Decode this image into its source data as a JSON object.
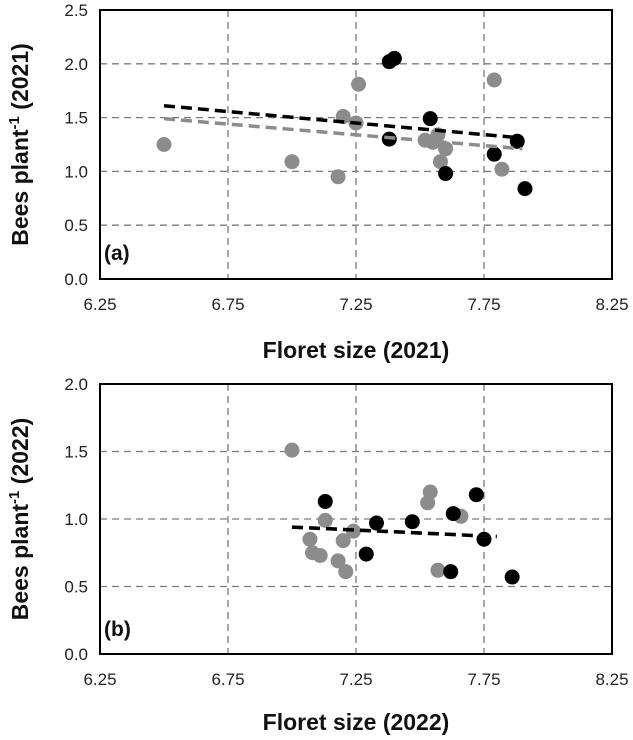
{
  "chart_data": [
    {
      "type": "scatter",
      "panel_label": "(a)",
      "xlabel": "Floret size (2021)",
      "ylabel": "Bees plant",
      "ylabel_sup": "-1",
      "ylabel_suffix": " (2021)",
      "xlim": [
        6.25,
        8.25
      ],
      "ylim": [
        0,
        2.5
      ],
      "x_ticks": [
        "6.25",
        "6.75",
        "7.25",
        "7.75",
        "8.25"
      ],
      "y_ticks": [
        "0.0",
        "0.5",
        "1.0",
        "1.5",
        "2.0",
        "2.5"
      ],
      "grid": true,
      "series": [
        {
          "color": "#000000",
          "points": [
            {
              "x": 7.38,
              "y": 2.02
            },
            {
              "x": 7.4,
              "y": 2.05
            },
            {
              "x": 7.38,
              "y": 1.3
            },
            {
              "x": 7.54,
              "y": 1.49
            },
            {
              "x": 7.6,
              "y": 0.98
            },
            {
              "x": 7.79,
              "y": 1.16
            },
            {
              "x": 7.88,
              "y": 1.28
            },
            {
              "x": 7.91,
              "y": 0.84
            }
          ],
          "trend": {
            "x": [
              6.5,
              7.9
            ],
            "y": [
              1.61,
              1.31
            ]
          }
        },
        {
          "color": "#8c8c8c",
          "points": [
            {
              "x": 6.5,
              "y": 1.25
            },
            {
              "x": 7.0,
              "y": 1.09
            },
            {
              "x": 7.18,
              "y": 0.95
            },
            {
              "x": 7.2,
              "y": 1.51
            },
            {
              "x": 7.25,
              "y": 1.45
            },
            {
              "x": 7.26,
              "y": 1.81
            },
            {
              "x": 7.52,
              "y": 1.29
            },
            {
              "x": 7.55,
              "y": 1.27
            },
            {
              "x": 7.57,
              "y": 1.34
            },
            {
              "x": 7.58,
              "y": 1.09
            },
            {
              "x": 7.6,
              "y": 1.21
            },
            {
              "x": 7.79,
              "y": 1.85
            },
            {
              "x": 7.82,
              "y": 1.02
            }
          ],
          "trend": {
            "x": [
              6.5,
              7.9
            ],
            "y": [
              1.49,
              1.21
            ]
          }
        }
      ]
    },
    {
      "type": "scatter",
      "panel_label": "(b)",
      "xlabel": "Floret size (2022)",
      "ylabel": "Bees plant",
      "ylabel_sup": "-1",
      "ylabel_suffix": " (2022)",
      "xlim": [
        6.25,
        8.25
      ],
      "ylim": [
        0,
        2.0
      ],
      "x_ticks": [
        "6.25",
        "6.75",
        "7.25",
        "7.75",
        "8.25"
      ],
      "y_ticks": [
        "0.0",
        "0.5",
        "1.0",
        "1.5",
        "2.0"
      ],
      "grid": true,
      "series": [
        {
          "color": "#000000",
          "points": [
            {
              "x": 7.13,
              "y": 1.13
            },
            {
              "x": 7.29,
              "y": 0.74
            },
            {
              "x": 7.33,
              "y": 0.97
            },
            {
              "x": 7.47,
              "y": 0.98
            },
            {
              "x": 7.62,
              "y": 0.61
            },
            {
              "x": 7.63,
              "y": 1.04
            },
            {
              "x": 7.72,
              "y": 1.18
            },
            {
              "x": 7.75,
              "y": 0.85
            },
            {
              "x": 7.86,
              "y": 0.57
            }
          ],
          "trend": {
            "x": [
              7.0,
              7.8
            ],
            "y": [
              0.94,
              0.87
            ]
          }
        },
        {
          "color": "#8c8c8c",
          "points": [
            {
              "x": 7.0,
              "y": 1.51
            },
            {
              "x": 7.07,
              "y": 0.85
            },
            {
              "x": 7.08,
              "y": 0.75
            },
            {
              "x": 7.11,
              "y": 0.73
            },
            {
              "x": 7.13,
              "y": 0.99
            },
            {
              "x": 7.18,
              "y": 0.69
            },
            {
              "x": 7.2,
              "y": 0.84
            },
            {
              "x": 7.21,
              "y": 0.61
            },
            {
              "x": 7.24,
              "y": 0.91
            },
            {
              "x": 7.53,
              "y": 1.12
            },
            {
              "x": 7.54,
              "y": 1.2
            },
            {
              "x": 7.57,
              "y": 0.62
            },
            {
              "x": 7.66,
              "y": 1.02
            }
          ],
          "trend": {
            "x": [
              7.0,
              7.8
            ],
            "y": [
              0.94,
              0.87
            ]
          }
        }
      ]
    }
  ]
}
